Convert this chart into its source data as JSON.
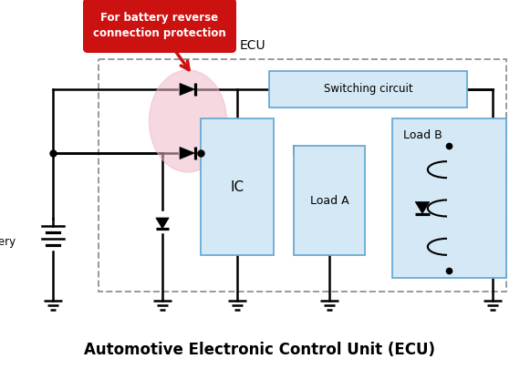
{
  "title": "Automotive Electronic Control Unit (ECU)",
  "title_fontsize": 12,
  "background_color": "#ffffff",
  "ecu_label": "ECU",
  "callout_text": "For battery reverse\nconnection protection",
  "callout_bg": "#cc1111",
  "callout_text_color": "#ffffff",
  "highlight_ellipse_color": "#f0b8c8",
  "highlight_ellipse_alpha": 0.55,
  "box_fill": "#d4e8f5",
  "box_edge": "#6aaad4",
  "switching_circuit_label": "Switching circuit",
  "ic_label": "IC",
  "load_a_label": "Load A",
  "load_b_label": "Load B",
  "battery_label": "Battery",
  "line_color": "#000000",
  "line_width": 1.8,
  "dashed_box_color": "#999999",
  "ground_color": "#000000"
}
